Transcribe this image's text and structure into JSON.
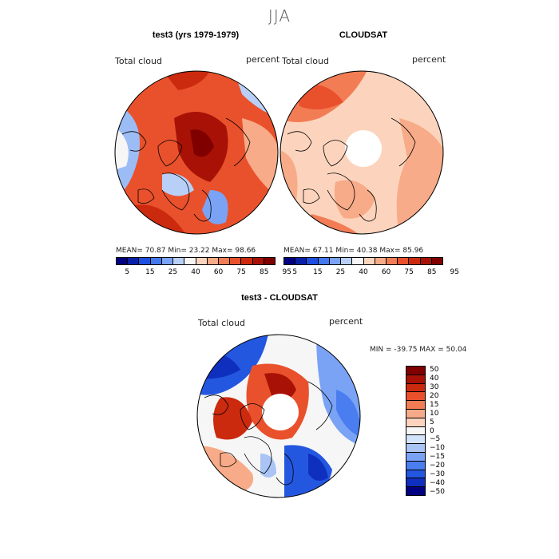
{
  "season": "JJA",
  "panel1": {
    "title": "test3 (yrs 1979-1979)",
    "variable": "Total cloud",
    "units": "percent",
    "stats": "MEAN=  70.87   Min=  23.22   Max=  98.66"
  },
  "panel2": {
    "title": "CLOUDSAT",
    "variable": "Total cloud",
    "units": "percent",
    "stats": "MEAN=  67.11   Min=  40.38   Max=  85.96"
  },
  "panel3": {
    "title": "test3 - CLOUDSAT",
    "variable": "Total cloud",
    "units": "percent",
    "stats": "MIN = -39.75  MAX =  50.04"
  },
  "colorbar_abs": {
    "colors": [
      "#000080",
      "#0a1fa8",
      "#1f4fe0",
      "#4478f0",
      "#7aa3f5",
      "#b8d0f8",
      "#f6f6f6",
      "#fcd4bd",
      "#f8ab88",
      "#f27d55",
      "#e9512c",
      "#cc2a0e",
      "#a81206",
      "#800000"
    ],
    "ticks": [
      "5",
      "15",
      "25",
      "40",
      "60",
      "75",
      "85",
      "95"
    ]
  },
  "colorbar_diff": {
    "colors": [
      "#800000",
      "#a81206",
      "#cc2a0e",
      "#e9512c",
      "#f27d55",
      "#f8ab88",
      "#fcd4bd",
      "#f6f6f6",
      "#d3e3fa",
      "#a9c4f5",
      "#7aa3f5",
      "#4a7df0",
      "#2457e0",
      "#0f2fbf",
      "#000080"
    ],
    "ticks": [
      "50",
      "40",
      "30",
      "20",
      "15",
      "10",
      "5",
      "0",
      "−5",
      "−10",
      "−15",
      "−20",
      "−30",
      "−40",
      "−50"
    ]
  }
}
